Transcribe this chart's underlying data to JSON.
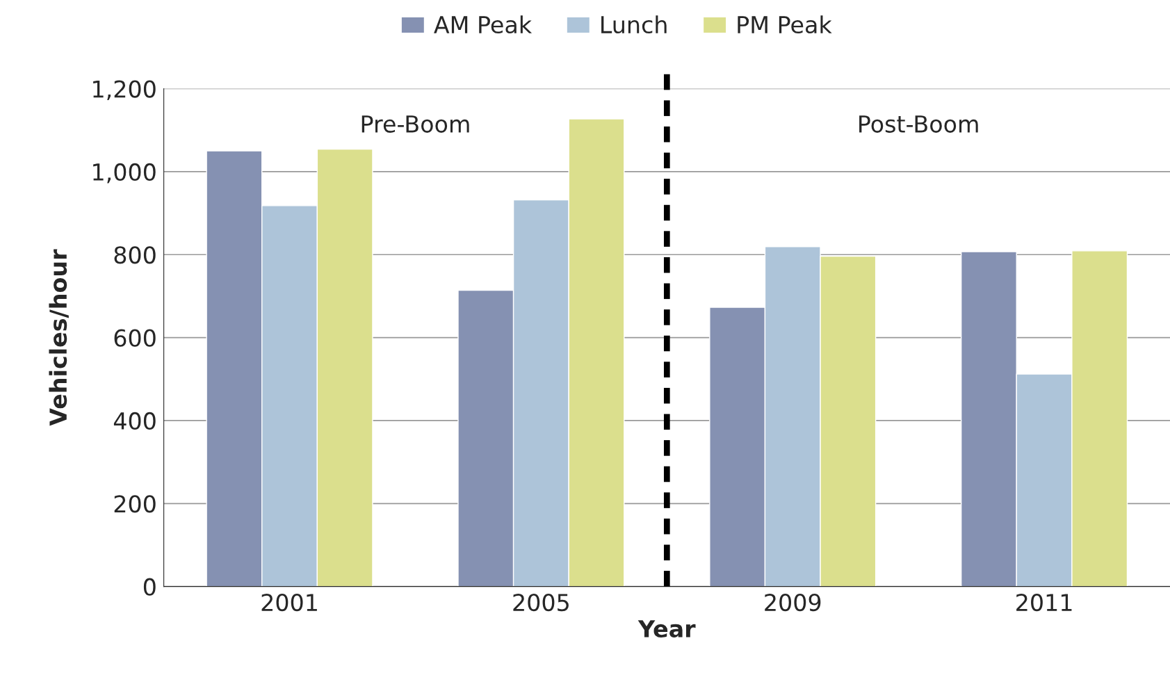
{
  "chart_data": {
    "type": "bar",
    "xlabel": "Year",
    "ylabel": "Vehicles/hour",
    "categories": [
      "2001",
      "2005",
      "2009",
      "2011"
    ],
    "series": [
      {
        "name": "AM Peak",
        "color": "#8591b2",
        "values": [
          1050,
          714,
          673,
          807
        ]
      },
      {
        "name": "Lunch",
        "color": "#adc4d9",
        "values": [
          918,
          932,
          819,
          512
        ]
      },
      {
        "name": "PM Peak",
        "color": "#dbdf8d",
        "values": [
          1054,
          1127,
          796,
          809
        ]
      }
    ],
    "ylim": [
      0,
      1200
    ],
    "yticks": [
      0,
      {
        "value": 200,
        "label": "200"
      },
      {
        "value": 400,
        "label": "400"
      },
      {
        "value": 600,
        "label": "600"
      },
      {
        "value": 800,
        "label": "800"
      },
      {
        "value": 1000,
        "label": "1,000"
      },
      {
        "value": 1200,
        "label": "1,200"
      }
    ],
    "annotations": [
      "Pre-Boom",
      "Post-Boom"
    ],
    "grid": "y",
    "legend": "top"
  }
}
